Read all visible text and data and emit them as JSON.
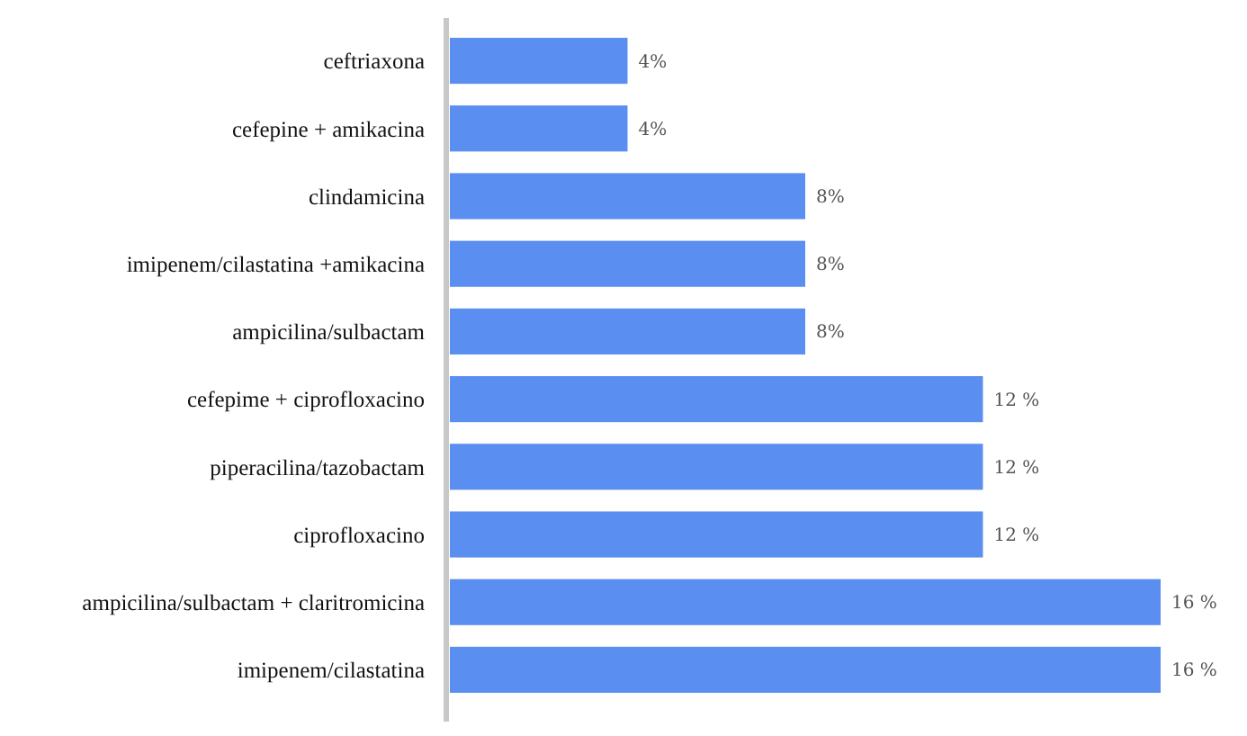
{
  "chart_data": {
    "type": "bar",
    "orientation": "horizontal",
    "categories": [
      "ceftriaxona",
      "cefepine + amikacina",
      "clindamicina",
      "imipenem/cilastatina +amikacina",
      "ampicilina/sulbactam",
      "cefepime + ciprofloxacino",
      "piperacilina/tazobactam",
      "ciprofloxacino",
      "ampicilina/sulbactam + claritromicina",
      "imipenem/cilastatina"
    ],
    "values": [
      4,
      4,
      8,
      8,
      8,
      12,
      12,
      12,
      16,
      16
    ],
    "value_labels": [
      "4%",
      "4%",
      "8%",
      "8%",
      "8%",
      "12 %",
      "12 %",
      "12 %",
      "16 %",
      "16 %"
    ],
    "color": "#5a8ef0"
  }
}
